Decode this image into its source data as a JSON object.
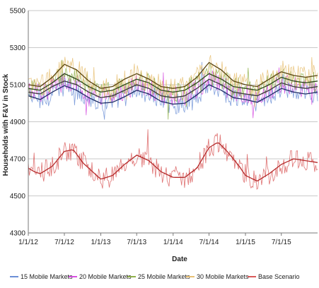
{
  "chart_data": {
    "type": "line",
    "title": "",
    "xlabel": "Date",
    "ylabel": "Households with F&V in Stock",
    "ylim": [
      4300,
      5500
    ],
    "yticks": [
      4300,
      4500,
      4700,
      4900,
      5100,
      5300,
      5500
    ],
    "xlim": [
      "2012-01-01",
      "2015-12-31"
    ],
    "xtick_labels": [
      "1/1/12",
      "7/1/12",
      "1/1/13",
      "7/1/13",
      "1/1/14",
      "7/1/14",
      "1/1/15",
      "7/1/15"
    ],
    "x_dates": [
      "2012-01-01",
      "2012-07-01",
      "2013-01-01",
      "2013-07-01",
      "2014-01-01",
      "2014-07-01",
      "2015-01-01",
      "2015-07-01"
    ],
    "grid": "horizontal",
    "legend_position": "bottom",
    "series": [
      {
        "name": "15 Mobile Markets",
        "color": "#6b8fd6",
        "trend_color": "#1f2d66",
        "noise": 55,
        "x": [
          "2012-01-01",
          "2012-03-01",
          "2012-05-01",
          "2012-07-01",
          "2012-09-01",
          "2012-11-01",
          "2013-01-01",
          "2013-03-01",
          "2013-05-01",
          "2013-07-01",
          "2013-09-01",
          "2013-11-01",
          "2014-01-01",
          "2014-03-01",
          "2014-05-01",
          "2014-07-01",
          "2014-09-01",
          "2014-11-01",
          "2015-01-01",
          "2015-03-01",
          "2015-05-01",
          "2015-07-01",
          "2015-09-01",
          "2015-11-01",
          "2015-12-31"
        ],
        "y": [
          5040,
          5020,
          5060,
          5095,
          5070,
          5030,
          5000,
          5005,
          5035,
          5070,
          5050,
          5010,
          4995,
          5000,
          5045,
          5100,
          5070,
          5030,
          5020,
          5005,
          5040,
          5080,
          5060,
          5050,
          5060
        ]
      },
      {
        "name": "20 Mobile Markets",
        "color": "#d64fe0",
        "trend_color": "#3a3a3a",
        "noise": 55,
        "x": [
          "2012-01-01",
          "2012-03-01",
          "2012-05-01",
          "2012-07-01",
          "2012-09-01",
          "2012-11-01",
          "2013-01-01",
          "2013-03-01",
          "2013-05-01",
          "2013-07-01",
          "2013-09-01",
          "2013-11-01",
          "2014-01-01",
          "2014-03-01",
          "2014-05-01",
          "2014-07-01",
          "2014-09-01",
          "2014-11-01",
          "2015-01-01",
          "2015-03-01",
          "2015-05-01",
          "2015-07-01",
          "2015-09-01",
          "2015-11-01",
          "2015-12-31"
        ],
        "y": [
          5060,
          5050,
          5090,
          5120,
          5100,
          5060,
          5030,
          5040,
          5070,
          5100,
          5080,
          5040,
          5030,
          5040,
          5080,
          5130,
          5100,
          5060,
          5050,
          5040,
          5070,
          5110,
          5090,
          5080,
          5090
        ]
      },
      {
        "name": "25 Mobile Markets",
        "color": "#8fb04a",
        "trend_color": "#2f4a1a",
        "noise": 55,
        "x": [
          "2012-01-01",
          "2012-03-01",
          "2012-05-01",
          "2012-07-01",
          "2012-09-01",
          "2012-11-01",
          "2013-01-01",
          "2013-03-01",
          "2013-05-01",
          "2013-07-01",
          "2013-09-01",
          "2013-11-01",
          "2014-01-01",
          "2014-03-01",
          "2014-05-01",
          "2014-07-01",
          "2014-09-01",
          "2014-11-01",
          "2015-01-01",
          "2015-03-01",
          "2015-05-01",
          "2015-07-01",
          "2015-09-01",
          "2015-11-01",
          "2015-12-31"
        ],
        "y": [
          5080,
          5070,
          5110,
          5160,
          5130,
          5090,
          5060,
          5070,
          5100,
          5130,
          5110,
          5070,
          5060,
          5070,
          5110,
          5160,
          5130,
          5090,
          5080,
          5070,
          5100,
          5140,
          5120,
          5110,
          5120
        ]
      },
      {
        "name": "30 Mobile Markets",
        "color": "#e8c073",
        "trend_color": "#5a4510",
        "noise": 60,
        "x": [
          "2012-01-01",
          "2012-03-01",
          "2012-05-01",
          "2012-07-01",
          "2012-09-01",
          "2012-11-01",
          "2013-01-01",
          "2013-03-01",
          "2013-05-01",
          "2013-07-01",
          "2013-09-01",
          "2013-11-01",
          "2014-01-01",
          "2014-03-01",
          "2014-05-01",
          "2014-07-01",
          "2014-09-01",
          "2014-11-01",
          "2015-01-01",
          "2015-03-01",
          "2015-05-01",
          "2015-07-01",
          "2015-09-01",
          "2015-11-01",
          "2015-12-31"
        ],
        "y": [
          5100,
          5090,
          5140,
          5210,
          5180,
          5120,
          5080,
          5090,
          5130,
          5160,
          5130,
          5090,
          5080,
          5090,
          5140,
          5220,
          5180,
          5120,
          5100,
          5090,
          5130,
          5170,
          5150,
          5140,
          5150
        ]
      },
      {
        "name": "Base Scenario",
        "color": "#d95a5a",
        "trend_color": "#b52a2a",
        "noise": 60,
        "x": [
          "2012-01-01",
          "2012-02-01",
          "2012-03-01",
          "2012-05-01",
          "2012-07-01",
          "2012-08-15",
          "2012-10-01",
          "2012-12-01",
          "2013-01-01",
          "2013-03-01",
          "2013-05-01",
          "2013-07-01",
          "2013-09-01",
          "2013-11-01",
          "2014-01-01",
          "2014-03-01",
          "2014-05-01",
          "2014-07-01",
          "2014-08-15",
          "2014-10-01",
          "2014-12-01",
          "2015-01-01",
          "2015-03-01",
          "2015-05-01",
          "2015-07-01",
          "2015-09-01",
          "2015-11-01",
          "2015-12-31"
        ],
        "y": [
          4650,
          4630,
          4620,
          4660,
          4740,
          4750,
          4680,
          4620,
          4590,
          4610,
          4670,
          4720,
          4690,
          4630,
          4600,
          4600,
          4650,
          4760,
          4790,
          4740,
          4660,
          4610,
          4580,
          4620,
          4670,
          4700,
          4690,
          4680
        ]
      }
    ]
  }
}
